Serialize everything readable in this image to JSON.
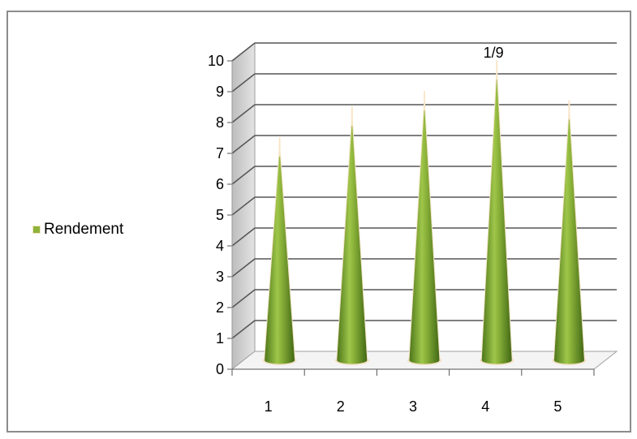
{
  "chart_data": {
    "type": "bar",
    "shape": "cone-3d",
    "categories": [
      "1",
      "2",
      "3",
      "4",
      "5"
    ],
    "series": [
      {
        "name": "Rendement",
        "values": [
          7,
          8,
          8.5,
          9.5,
          8.2
        ]
      }
    ],
    "y_ticks": [
      "0",
      "1",
      "2",
      "3",
      "4",
      "5",
      "6",
      "7",
      "8",
      "9",
      "10"
    ],
    "ylim": [
      0,
      10
    ],
    "grid": true,
    "legend": "left",
    "data_labels": [
      {
        "category": "4",
        "text": "1/9"
      }
    ],
    "colors": {
      "bar": "#8db33a",
      "bar_dark": "#4f7a1c",
      "grid": "#555555",
      "wall": "#cfcfcf"
    }
  }
}
